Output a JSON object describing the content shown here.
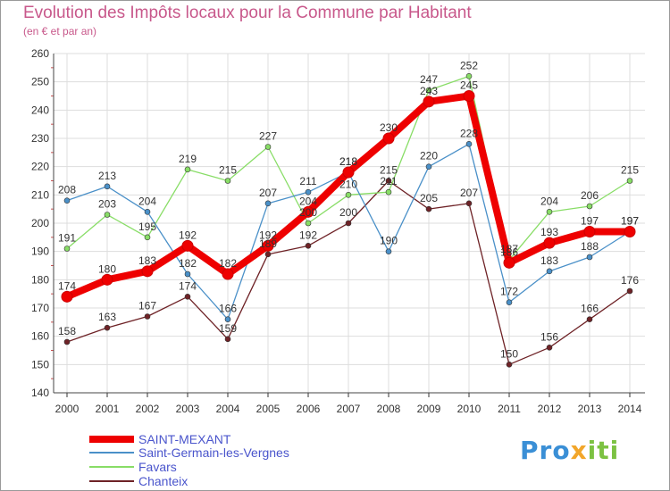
{
  "chart_data": {
    "type": "line",
    "title": "Evolution des Impôts locaux pour la Commune par Habitant",
    "subtitle": "(en € et par an)",
    "xlabel": "",
    "ylabel": "",
    "x": [
      "2000",
      "2001",
      "2002",
      "2003",
      "2004",
      "2005",
      "2006",
      "2007",
      "2008",
      "2009",
      "2010",
      "2011",
      "2012",
      "2013",
      "2014"
    ],
    "ylim": [
      140,
      260
    ],
    "yticks": [
      "140",
      "150",
      "160",
      "170",
      "180",
      "190",
      "200",
      "210",
      "220",
      "230",
      "240",
      "250",
      "260"
    ],
    "grid": true,
    "legend_position": "bottom-left",
    "series": [
      {
        "name": "SAINT-MEXANT",
        "color": "#ee0000",
        "values": [
          174,
          180,
          183,
          192,
          182,
          192,
          204,
          218,
          230,
          243,
          245,
          186,
          193,
          197,
          197
        ]
      },
      {
        "name": "Saint-Germain-les-Vergnes",
        "color": "#4a90c8",
        "values": [
          208,
          213,
          204,
          182,
          166,
          207,
          211,
          218,
          190,
          220,
          228,
          172,
          183,
          188,
          197
        ]
      },
      {
        "name": "Favars",
        "color": "#88dd66",
        "values": [
          191,
          203,
          195,
          219,
          215,
          227,
          200,
          210,
          211,
          247,
          252,
          187,
          204,
          206,
          215
        ]
      },
      {
        "name": "Chanteix",
        "color": "#6e2226",
        "values": [
          158,
          163,
          167,
          174,
          159,
          189,
          192,
          200,
          215,
          205,
          207,
          150,
          156,
          166,
          176
        ]
      }
    ]
  },
  "logo": {
    "text_a": "Pro",
    "text_b": "x",
    "text_c": "iti"
  }
}
